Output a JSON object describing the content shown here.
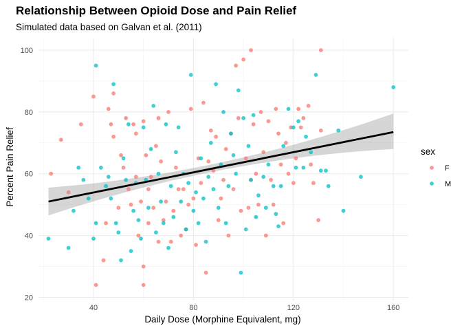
{
  "chart_data": {
    "type": "scatter",
    "title": "Relationship Between Opioid Dose and Pain Relief",
    "subtitle": "Simulated data based on Galvan et al. (2011)",
    "xlabel": "Daily Dose (Morphine Equivalent, mg)",
    "ylabel": "Percent Pain Relief",
    "xlim": [
      18,
      166
    ],
    "ylim": [
      19,
      104
    ],
    "x_ticks": [
      40,
      80,
      120,
      160
    ],
    "y_ticks": [
      20,
      40,
      60,
      80,
      100
    ],
    "grid": true,
    "legend": {
      "title": "sex",
      "placement": "right"
    },
    "colors": {
      "F": "#F8766D",
      "M": "#00BFC4",
      "fit_line": "#000000",
      "ribbon": "#999999"
    },
    "fit": {
      "method": "linear regression with confidence band",
      "line": [
        [
          22,
          51
        ],
        [
          160,
          73.5
        ]
      ],
      "band": [
        [
          22,
          46.5,
          55.5
        ],
        [
          90,
          61.0,
          63.5
        ],
        [
          160,
          68.0,
          79.5
        ]
      ]
    },
    "series": [
      {
        "name": "F",
        "points": [
          [
            23,
            60
          ],
          [
            27,
            71
          ],
          [
            30,
            54
          ],
          [
            35,
            76
          ],
          [
            40,
            85
          ],
          [
            41,
            24
          ],
          [
            44,
            32
          ],
          [
            45,
            44
          ],
          [
            46,
            81
          ],
          [
            47,
            76
          ],
          [
            48,
            72
          ],
          [
            48,
            86
          ],
          [
            50,
            49
          ],
          [
            51,
            66
          ],
          [
            52,
            62
          ],
          [
            53,
            78
          ],
          [
            54,
            55
          ],
          [
            55,
            50
          ],
          [
            56,
            76
          ],
          [
            57,
            73
          ],
          [
            57,
            59
          ],
          [
            58,
            40
          ],
          [
            59,
            51
          ],
          [
            60,
            30
          ],
          [
            60,
            24
          ],
          [
            60,
            77
          ],
          [
            61,
            66
          ],
          [
            62,
            44
          ],
          [
            62,
            55
          ],
          [
            63,
            59
          ],
          [
            64,
            49
          ],
          [
            65,
            69
          ],
          [
            66,
            78
          ],
          [
            66,
            38
          ],
          [
            67,
            64
          ],
          [
            68,
            45
          ],
          [
            69,
            51
          ],
          [
            70,
            80
          ],
          [
            71,
            38
          ],
          [
            72,
            48
          ],
          [
            73,
            62
          ],
          [
            74,
            55
          ],
          [
            75,
            40
          ],
          [
            76,
            55
          ],
          [
            77,
            42
          ],
          [
            78,
            50
          ],
          [
            79,
            81
          ],
          [
            80,
            52
          ],
          [
            81,
            37
          ],
          [
            82,
            65
          ],
          [
            83,
            57
          ],
          [
            84,
            83
          ],
          [
            85,
            28
          ],
          [
            86,
            64
          ],
          [
            87,
            74
          ],
          [
            88,
            61
          ],
          [
            89,
            72
          ],
          [
            90,
            45
          ],
          [
            91,
            52
          ],
          [
            92,
            58
          ],
          [
            93,
            68
          ],
          [
            94,
            40
          ],
          [
            95,
            73
          ],
          [
            96,
            55
          ],
          [
            97,
            95
          ],
          [
            98,
            78
          ],
          [
            99,
            48
          ],
          [
            100,
            97
          ],
          [
            101,
            65
          ],
          [
            102,
            49
          ],
          [
            103,
            58
          ],
          [
            103,
            100
          ],
          [
            104,
            76
          ],
          [
            105,
            60
          ],
          [
            106,
            50
          ],
          [
            107,
            80
          ],
          [
            108,
            67
          ],
          [
            109,
            40
          ],
          [
            110,
            77
          ],
          [
            111,
            58
          ],
          [
            112,
            50
          ],
          [
            113,
            81
          ],
          [
            114,
            73
          ],
          [
            115,
            63
          ],
          [
            116,
            44
          ],
          [
            117,
            70
          ],
          [
            118,
            60
          ],
          [
            119,
            75
          ],
          [
            120,
            57
          ],
          [
            121,
            65
          ],
          [
            122,
            81
          ],
          [
            123,
            75
          ],
          [
            124,
            78
          ],
          [
            126,
            82
          ],
          [
            127,
            63
          ],
          [
            128,
            57
          ],
          [
            130,
            45
          ],
          [
            131,
            74
          ],
          [
            131,
            100
          ]
        ]
      },
      {
        "name": "M",
        "points": [
          [
            22,
            39
          ],
          [
            30,
            36
          ],
          [
            32,
            48
          ],
          [
            34,
            62
          ],
          [
            36,
            58
          ],
          [
            38,
            52
          ],
          [
            40,
            39
          ],
          [
            41,
            44
          ],
          [
            41,
            95
          ],
          [
            43,
            62
          ],
          [
            45,
            56
          ],
          [
            46,
            59
          ],
          [
            47,
            52
          ],
          [
            48,
            89
          ],
          [
            49,
            44
          ],
          [
            50,
            41
          ],
          [
            51,
            32
          ],
          [
            52,
            65
          ],
          [
            53,
            58
          ],
          [
            54,
            76
          ],
          [
            55,
            35
          ],
          [
            56,
            48
          ],
          [
            57,
            57
          ],
          [
            58,
            45
          ],
          [
            59,
            39
          ],
          [
            60,
            75
          ],
          [
            61,
            58
          ],
          [
            62,
            49
          ],
          [
            63,
            68
          ],
          [
            64,
            82
          ],
          [
            65,
            41
          ],
          [
            66,
            60
          ],
          [
            67,
            51
          ],
          [
            68,
            44
          ],
          [
            69,
            76
          ],
          [
            70,
            36
          ],
          [
            71,
            56
          ],
          [
            72,
            46
          ],
          [
            73,
            67
          ],
          [
            74,
            75
          ],
          [
            75,
            51
          ],
          [
            76,
            60
          ],
          [
            77,
            42
          ],
          [
            78,
            57
          ],
          [
            79,
            92
          ],
          [
            80,
            48
          ],
          [
            81,
            54
          ],
          [
            82,
            44
          ],
          [
            83,
            65
          ],
          [
            84,
            52
          ],
          [
            85,
            38
          ],
          [
            86,
            59
          ],
          [
            87,
            70
          ],
          [
            88,
            55
          ],
          [
            89,
            89
          ],
          [
            90,
            49
          ],
          [
            91,
            63
          ],
          [
            92,
            80
          ],
          [
            93,
            44
          ],
          [
            94,
            56
          ],
          [
            95,
            73
          ],
          [
            96,
            66
          ],
          [
            97,
            60
          ],
          [
            98,
            87
          ],
          [
            99,
            28
          ],
          [
            100,
            78
          ],
          [
            101,
            42
          ],
          [
            102,
            69
          ],
          [
            103,
            58
          ],
          [
            104,
            79
          ],
          [
            105,
            46
          ],
          [
            106,
            53
          ],
          [
            108,
            59
          ],
          [
            109,
            49
          ],
          [
            110,
            63
          ],
          [
            112,
            56
          ],
          [
            113,
            47
          ],
          [
            114,
            43
          ],
          [
            115,
            56
          ],
          [
            116,
            69
          ],
          [
            118,
            81
          ],
          [
            120,
            75
          ],
          [
            121,
            62
          ],
          [
            122,
            77
          ],
          [
            124,
            62
          ],
          [
            125,
            72
          ],
          [
            127,
            67
          ],
          [
            129,
            92
          ],
          [
            131,
            61
          ],
          [
            133,
            61
          ],
          [
            134,
            56
          ],
          [
            138,
            74
          ],
          [
            140,
            48
          ],
          [
            147,
            59
          ],
          [
            160,
            88
          ]
        ]
      }
    ]
  }
}
